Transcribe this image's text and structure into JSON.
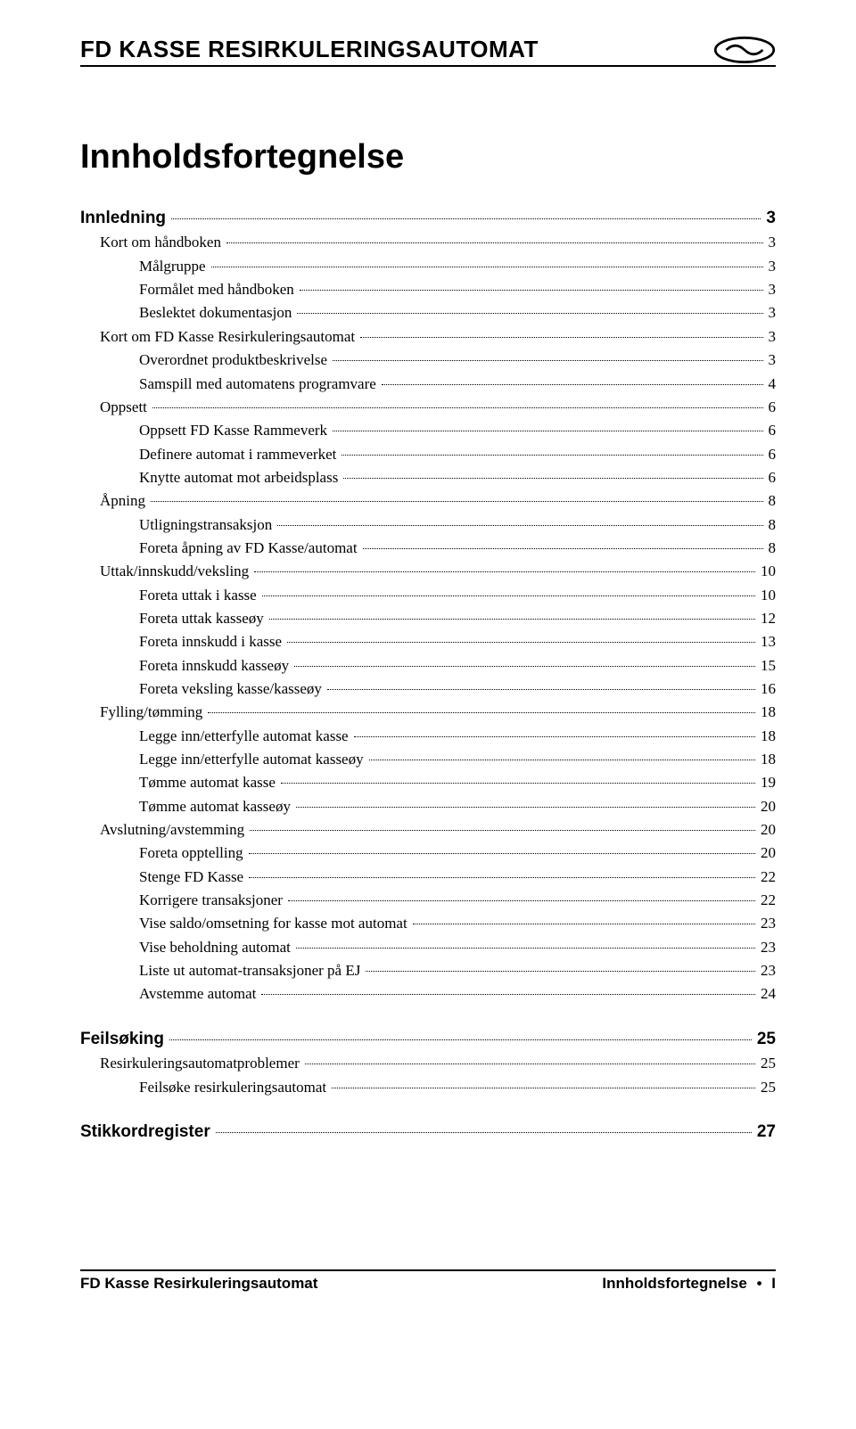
{
  "header": {
    "title": "FD KASSE RESIRKULERINGSAUTOMAT"
  },
  "main_title": "Innholdsfortegnelse",
  "toc": [
    {
      "level": 0,
      "label": "Innledning",
      "page": "3"
    },
    {
      "level": 1,
      "label": "Kort om håndboken",
      "page": "3"
    },
    {
      "level": 2,
      "label": "Målgruppe",
      "page": "3"
    },
    {
      "level": 2,
      "label": "Formålet med håndboken",
      "page": "3"
    },
    {
      "level": 2,
      "label": "Beslektet dokumentasjon",
      "page": "3"
    },
    {
      "level": 1,
      "label": "Kort om FD Kasse Resirkuleringsautomat",
      "page": "3"
    },
    {
      "level": 2,
      "label": "Overordnet produktbeskrivelse",
      "page": "3"
    },
    {
      "level": 2,
      "label": "Samspill med automatens programvare",
      "page": "4"
    },
    {
      "level": 1,
      "label": "Oppsett",
      "page": "6"
    },
    {
      "level": 2,
      "label": "Oppsett FD Kasse Rammeverk",
      "page": "6"
    },
    {
      "level": 2,
      "label": "Definere automat i rammeverket",
      "page": "6"
    },
    {
      "level": 2,
      "label": "Knytte automat mot arbeidsplass",
      "page": "6"
    },
    {
      "level": 1,
      "label": "Åpning",
      "page": "8"
    },
    {
      "level": 2,
      "label": "Utligningstransaksjon",
      "page": "8"
    },
    {
      "level": 2,
      "label": "Foreta åpning av FD Kasse/automat",
      "page": "8"
    },
    {
      "level": 1,
      "label": "Uttak/innskudd/veksling",
      "page": "10"
    },
    {
      "level": 2,
      "label": "Foreta uttak i kasse",
      "page": "10"
    },
    {
      "level": 2,
      "label": "Foreta uttak kasseøy",
      "page": "12"
    },
    {
      "level": 2,
      "label": "Foreta innskudd i kasse",
      "page": "13"
    },
    {
      "level": 2,
      "label": "Foreta innskudd kasseøy",
      "page": "15"
    },
    {
      "level": 2,
      "label": "Foreta veksling kasse/kasseøy",
      "page": "16"
    },
    {
      "level": 1,
      "label": "Fylling/tømming",
      "page": "18"
    },
    {
      "level": 2,
      "label": "Legge inn/etterfylle automat kasse",
      "page": "18"
    },
    {
      "level": 2,
      "label": "Legge inn/etterfylle automat kasseøy",
      "page": "18"
    },
    {
      "level": 2,
      "label": "Tømme automat kasse",
      "page": "19"
    },
    {
      "level": 2,
      "label": "Tømme automat kasseøy",
      "page": "20"
    },
    {
      "level": 1,
      "label": "Avslutning/avstemming",
      "page": "20"
    },
    {
      "level": 2,
      "label": "Foreta opptelling",
      "page": "20"
    },
    {
      "level": 2,
      "label": "Stenge FD Kasse",
      "page": "22"
    },
    {
      "level": 2,
      "label": "Korrigere transaksjoner",
      "page": "22"
    },
    {
      "level": 2,
      "label": "Vise saldo/omsetning for kasse mot automat",
      "page": "23"
    },
    {
      "level": 2,
      "label": "Vise beholdning automat",
      "page": "23"
    },
    {
      "level": 2,
      "label": "Liste ut automat-transaksjoner på EJ",
      "page": "23"
    },
    {
      "level": 2,
      "label": "Avstemme automat",
      "page": "24"
    },
    {
      "level": 0,
      "label": "Feilsøking",
      "page": "25"
    },
    {
      "level": 1,
      "label": "Resirkuleringsautomatproblemer",
      "page": "25"
    },
    {
      "level": 2,
      "label": "Feilsøke resirkuleringsautomat",
      "page": "25"
    },
    {
      "level": 0,
      "label": "Stikkordregister",
      "page": "27"
    }
  ],
  "footer": {
    "left": "FD Kasse Resirkuleringsautomat",
    "right_section": "Innholdsfortegnelse",
    "right_page": "I"
  }
}
